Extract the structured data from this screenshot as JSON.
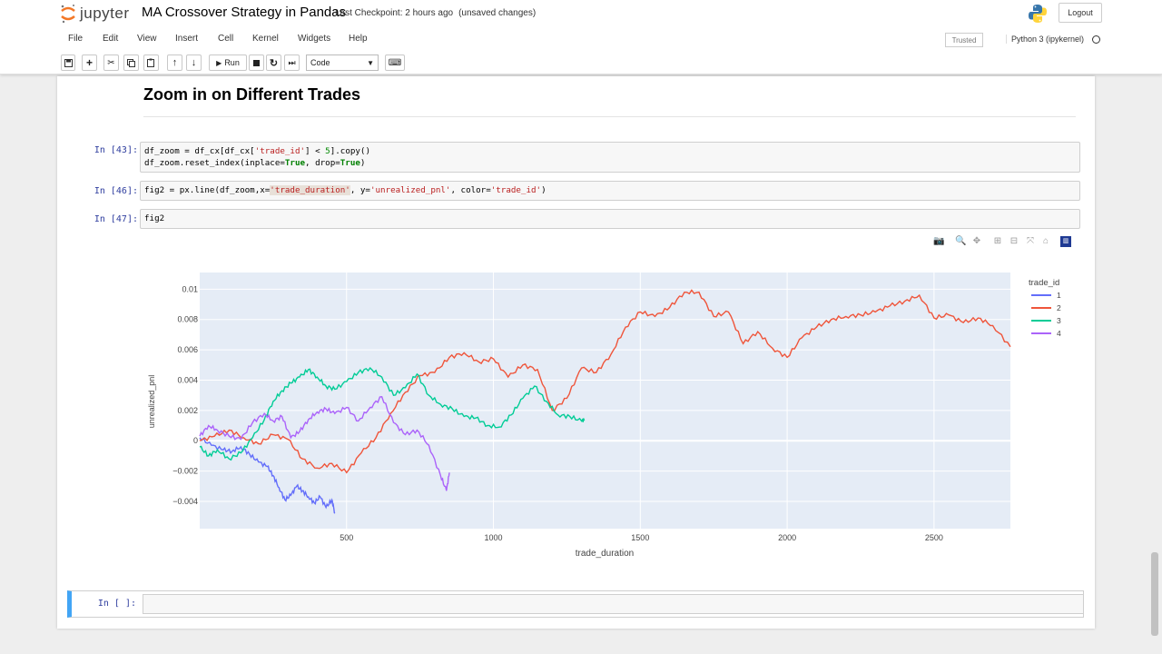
{
  "header": {
    "logo_text": "jupyter",
    "title": "MA Crossover Strategy in Pandas",
    "checkpoint": "Last Checkpoint: 2 hours ago",
    "unsaved": "(unsaved changes)",
    "logout_label": "Logout"
  },
  "menu": [
    "File",
    "Edit",
    "View",
    "Insert",
    "Cell",
    "Kernel",
    "Widgets",
    "Help"
  ],
  "status": {
    "trusted": "Trusted",
    "kernel": "Python 3 (ipykernel)"
  },
  "toolbar": {
    "run_label": "Run",
    "cell_type": "Code"
  },
  "notebook": {
    "heading": "Zoom in on Different Trades",
    "cells": [
      {
        "prompt": "In [43]:"
      },
      {
        "prompt": "In [46]:"
      },
      {
        "prompt": "In [47]:",
        "code": "fig2"
      },
      {
        "prompt": "In [ ]:"
      }
    ]
  },
  "chart_data": {
    "type": "line",
    "xlabel": "trade_duration",
    "ylabel": "unrealized_pnl",
    "legend_title": "trade_id",
    "legend_placement": "top-right",
    "xlim": [
      0,
      2760
    ],
    "ylim": [
      -0.0058,
      0.0111
    ],
    "x_ticks": [
      500,
      1000,
      1500,
      2000,
      2500
    ],
    "y_ticks": [
      -0.004,
      -0.002,
      0,
      0.002,
      0.004,
      0.006,
      0.008,
      0.01
    ],
    "y_tick_labels": [
      "−0.004",
      "−0.002",
      "0",
      "0.002",
      "0.004",
      "0.006",
      "0.008",
      "0.01"
    ],
    "grid": true,
    "series": [
      {
        "name": "1",
        "color": "#636efa",
        "x": [
          0,
          40,
          80,
          110,
          140,
          170,
          200,
          230,
          250,
          270,
          290,
          310,
          330,
          350,
          370,
          390,
          410,
          430,
          450,
          460
        ],
        "y": [
          0.0002,
          -0.0003,
          -0.0006,
          -0.0007,
          -0.0004,
          -0.0009,
          -0.0014,
          -0.0017,
          -0.0023,
          -0.0031,
          -0.0039,
          -0.0036,
          -0.003,
          -0.0033,
          -0.0037,
          -0.0041,
          -0.0037,
          -0.0044,
          -0.0039,
          -0.0048
        ]
      },
      {
        "name": "2",
        "color": "#ef553b",
        "x": [
          0,
          50,
          100,
          150,
          200,
          250,
          300,
          350,
          400,
          450,
          500,
          550,
          600,
          650,
          700,
          750,
          800,
          850,
          900,
          950,
          1000,
          1050,
          1100,
          1150,
          1200,
          1250,
          1300,
          1350,
          1400,
          1450,
          1500,
          1550,
          1600,
          1650,
          1700,
          1750,
          1800,
          1850,
          1900,
          1950,
          2000,
          2050,
          2100,
          2150,
          2200,
          2250,
          2300,
          2350,
          2400,
          2450,
          2500,
          2550,
          2600,
          2650,
          2700,
          2760
        ],
        "y": [
          0.0,
          0.0003,
          0.0007,
          0.0002,
          -0.0002,
          0.0004,
          0.0001,
          -0.0012,
          -0.0018,
          -0.0015,
          -0.0021,
          -0.0008,
          0.0002,
          0.0018,
          0.0032,
          0.0043,
          0.0045,
          0.0055,
          0.0058,
          0.0052,
          0.0054,
          0.0042,
          0.005,
          0.0047,
          0.002,
          0.0028,
          0.0048,
          0.0045,
          0.0057,
          0.0075,
          0.0085,
          0.0082,
          0.0088,
          0.0098,
          0.0098,
          0.0082,
          0.0085,
          0.0064,
          0.0072,
          0.0061,
          0.0055,
          0.0068,
          0.0075,
          0.008,
          0.0082,
          0.0083,
          0.0085,
          0.0089,
          0.0092,
          0.0096,
          0.0081,
          0.0083,
          0.0078,
          0.0081,
          0.0076,
          0.0062
        ]
      },
      {
        "name": "3",
        "color": "#00cc96",
        "x": [
          0,
          30,
          60,
          100,
          140,
          180,
          220,
          250,
          280,
          310,
          340,
          370,
          400,
          430,
          460,
          500,
          540,
          580,
          620,
          660,
          700,
          740,
          780,
          820,
          860,
          900,
          940,
          980,
          1020,
          1060,
          1100,
          1140,
          1180,
          1220,
          1260,
          1300,
          1310
        ],
        "y": [
          -0.0004,
          -0.001,
          -0.0006,
          -0.0012,
          -0.0008,
          0.0002,
          0.0014,
          0.0026,
          0.0033,
          0.0038,
          0.0042,
          0.0047,
          0.0042,
          0.0036,
          0.0034,
          0.0039,
          0.0045,
          0.0048,
          0.0042,
          0.003,
          0.0035,
          0.0044,
          0.003,
          0.0024,
          0.0021,
          0.0016,
          0.0015,
          0.001,
          0.0009,
          0.0017,
          0.0028,
          0.0036,
          0.0026,
          0.0017,
          0.0016,
          0.0013,
          0.0014
        ]
      },
      {
        "name": "4",
        "color": "#ab63fa",
        "x": [
          0,
          30,
          60,
          100,
          140,
          180,
          220,
          250,
          280,
          310,
          340,
          370,
          400,
          430,
          460,
          500,
          540,
          580,
          620,
          660,
          700,
          740,
          780,
          820,
          840,
          850
        ],
        "y": [
          0.0003,
          0.001,
          0.0007,
          0.0003,
          0.0001,
          0.0012,
          0.0018,
          0.0013,
          0.0016,
          0.0002,
          0.0006,
          0.0014,
          0.0019,
          0.0021,
          0.0018,
          0.0022,
          0.0013,
          0.0022,
          0.0029,
          0.0012,
          0.0004,
          0.0007,
          -0.0003,
          -0.0023,
          -0.0033,
          -0.0021
        ]
      }
    ]
  }
}
